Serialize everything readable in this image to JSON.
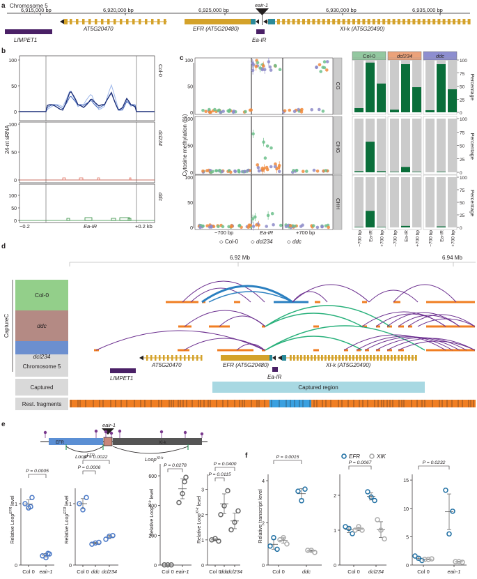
{
  "panel_a": {
    "letter": "a",
    "chrom_label": "Chromosome 5",
    "coords": [
      "6,915,000 bp",
      "6,920,000 bp",
      "6,925,000 bp",
      "6,930,000 bp",
      "6,935,000 bp"
    ],
    "insertion_label": "eair-1",
    "genes": {
      "g1": "AT5G20470",
      "g2": "EFR (AT5G20480)",
      "g3": "XI-k (AT5G20490)",
      "limpet": "LIMPET1",
      "eair": "Ea-IR"
    }
  },
  "panel_b": {
    "letter": "b",
    "ylabel": "24-nt sRNA",
    "yticks": [
      "0",
      "50",
      "100"
    ],
    "tracks": [
      "Col-0",
      "dcl234",
      "ddc"
    ],
    "xlabels": [
      "−0.2",
      "Ea-IR",
      "+0.2 kb"
    ]
  },
  "panel_c": {
    "letter": "c",
    "ylabel": "Cytosine methylation (%)",
    "yticks": [
      "0",
      "25",
      "50",
      "75",
      "100"
    ],
    "contexts": [
      "CG",
      "CHG",
      "CHH"
    ],
    "xlabels": [
      "−700 bp",
      "Ea-IR",
      "+700 bp"
    ],
    "legend": [
      "Col-0",
      "dcl234",
      "ddc"
    ],
    "bar_headers": [
      "Col-0",
      "dcl234",
      "ddc"
    ],
    "bar_ylabel": "Percentage",
    "bar_xlabels": [
      "−700 bp",
      "Ea-IR",
      "+700 bp"
    ],
    "colors": {
      "col0": "#6cc08b",
      "dcl234": "#f08a3c",
      "ddc": "#8c8ac8",
      "meth": "#0a6e3a",
      "unmeth": "#cbcbcb"
    }
  },
  "chart_data": [
    {
      "type": "bar",
      "title": "Methylated fraction per region (panel c, stacked bars)",
      "categories": [
        "−700 bp",
        "Ea-IR",
        "+700 bp"
      ],
      "ylabel": "Percentage",
      "ylim": [
        0,
        100
      ],
      "series": [
        {
          "name": "CG Col-0",
          "values": [
            8,
            95,
            55
          ]
        },
        {
          "name": "CG dcl234",
          "values": [
            5,
            92,
            48
          ]
        },
        {
          "name": "CG ddc",
          "values": [
            4,
            92,
            44
          ]
        },
        {
          "name": "CHG Col-0",
          "values": [
            2,
            57,
            2
          ]
        },
        {
          "name": "CHG dcl234",
          "values": [
            1,
            10,
            1
          ]
        },
        {
          "name": "CHG ddc",
          "values": [
            0,
            1,
            0
          ]
        },
        {
          "name": "CHH Col-0",
          "values": [
            1,
            33,
            1
          ]
        },
        {
          "name": "CHH dcl234",
          "values": [
            0,
            3,
            0
          ]
        },
        {
          "name": "CHH ddc",
          "values": [
            0,
            2,
            0
          ]
        }
      ]
    },
    {
      "type": "scatter",
      "title": "Relative Loop EFR level (Col 0 vs eair-1)",
      "categories": [
        "Col 0",
        "eair-1"
      ],
      "yticks": [
        "0",
        "1"
      ],
      "series": [
        {
          "name": "points",
          "values": [
            [
              1.0,
              1.1,
              0.93,
              0.95
            ],
            [
              0.15,
              0.18,
              0.12,
              0.19
            ]
          ]
        }
      ],
      "means": [
        1.0,
        0.16
      ],
      "p_values": [
        "P = 0.0005"
      ]
    },
    {
      "type": "scatter",
      "title": "Relative Loop EFR level (Col 0, ddc, dcl234)",
      "categories": [
        "Col 0",
        "ddc",
        "dcl234"
      ],
      "yticks": [
        "0",
        "1"
      ],
      "series": [
        {
          "name": "points",
          "values": [
            [
              1.0,
              1.1,
              0.9
            ],
            [
              0.34,
              0.37,
              0.36
            ],
            [
              0.42,
              0.48,
              0.47
            ]
          ]
        }
      ],
      "means": [
        1.0,
        0.36,
        0.46
      ],
      "p_values": [
        "P = 0.0022",
        "P = 0.0006"
      ]
    },
    {
      "type": "scatter",
      "title": "Relative Loop XI-k level (Col 0 vs eair-1)",
      "categories": [
        "Col 0",
        "eair-1"
      ],
      "yticks": [
        "0",
        "200",
        "400",
        "600"
      ],
      "series": [
        {
          "name": "points",
          "values": [
            [
              0.95,
              1.0,
              1.05
            ],
            [
              420,
              590,
              480,
              560
            ]
          ]
        }
      ],
      "means": [
        1.0,
        520
      ],
      "p_values": [
        "P = 0.0278"
      ]
    },
    {
      "type": "scatter",
      "title": "Relative Loop XI-k level (Col 0, ddc, dcl234)",
      "categories": [
        "Col 0",
        "ddc",
        "dcl234"
      ],
      "yticks": [
        "0",
        "1",
        "2",
        "3"
      ],
      "series": [
        {
          "name": "points",
          "values": [
            [
              1.0,
              0.95,
              1.05
            ],
            [
              2.0,
              2.95,
              2.35
            ],
            [
              1.4,
              2.15,
              1.7
            ]
          ]
        }
      ],
      "means": [
        1.0,
        2.4,
        1.75
      ],
      "p_values": [
        "P = 0.0400",
        "P = 0.0115"
      ]
    },
    {
      "type": "scatter",
      "title": "Relative transcript level (Col 0 vs ddc)",
      "categories": [
        "Col 0",
        "ddc"
      ],
      "yticks": [
        "0",
        "2",
        "4"
      ],
      "series": [
        {
          "name": "EFR",
          "values": [
            [
              0.9,
              0.75,
              1.3
            ],
            [
              3.5,
              3.6,
              3.05
            ]
          ]
        },
        {
          "name": "XIK",
          "values": [
            [
              1.2,
              1.0,
              1.3
            ],
            [
              0.7,
              0.6,
              0.7
            ]
          ]
        }
      ],
      "p_values": [
        "P = 0.0015"
      ]
    },
    {
      "type": "scatter",
      "title": "Relative transcript level (Col 0 vs dcl234)",
      "categories": [
        "Col 0",
        "dcl234"
      ],
      "yticks": [
        "0",
        "1",
        "2"
      ],
      "series": [
        {
          "name": "EFR",
          "values": [
            [
              1.1,
              0.9,
              1.05
            ],
            [
              2.1,
              1.85,
              1.95
            ]
          ]
        },
        {
          "name": "XIK",
          "values": [
            [
              1.0,
              1.0,
              1.1
            ],
            [
              1.3,
              0.75,
              1.0
            ]
          ]
        }
      ],
      "p_values": [
        "P = 0.0067"
      ]
    },
    {
      "type": "scatter",
      "title": "Relative transcript level (Col 0 vs eair-1)",
      "categories": [
        "Col 0",
        "eair-1"
      ],
      "yticks": [
        "0",
        "5",
        "10",
        "15"
      ],
      "series": [
        {
          "name": "EFR",
          "values": [
            [
              1.6,
              0.8,
              1.2
            ],
            [
              13.2,
              9.5,
              5.5
            ]
          ]
        },
        {
          "name": "XIK",
          "values": [
            [
              1.0,
              1.1,
              1.0
            ],
            [
              0.6,
              0.5,
              0.6
            ]
          ]
        }
      ],
      "p_values": [
        "P = 0.0232"
      ]
    }
  ],
  "panel_d": {
    "letter": "d",
    "axis_ticks": [
      "6.92 Mb",
      "6.94 Mb"
    ],
    "group_label": "CaptureC",
    "tracks": [
      "Col‑0",
      "ddc",
      "dcl234"
    ],
    "annot_tracks": [
      "Chromosome 5",
      "Captured",
      "Rest. fragments"
    ],
    "captured_region": "Captured region",
    "genes": {
      "g1": "AT5G20470",
      "g2": "EFR (AT5G20480)",
      "g3": "XI-k (AT5G20490)",
      "limpet": "LIMPET1",
      "eair": "Ea-IR"
    },
    "colors": {
      "col0": "#93cf8a",
      "ddc": "#b48a84",
      "dcl234": "#6c8fcf",
      "grey": "#d9d9d9",
      "arc": "#6a2d8e",
      "arc_blue": "#2a7fc0",
      "arc_green": "#27b07a",
      "frag": "#f07e22"
    }
  },
  "panel_e": {
    "letter": "e",
    "insertion_label": "eair-1",
    "efr": "EFR",
    "xik": "XI-k",
    "loop_efr": "Loop",
    "loop_efr_sup": "EFR",
    "loop_xik": "Loop",
    "loop_xik_sup": "XI-k",
    "ylabel_efr": "Relative Loop",
    "ylabel_efr_sup": "EFR",
    "ylabel_xik": "Relative Loop",
    "ylabel_xik_sup": "XI-k",
    "ylabel_suffix": "level"
  },
  "panel_f": {
    "letter": "f",
    "legend": [
      "EFR",
      "XIK"
    ],
    "ylabel": "Relative transcript level"
  }
}
